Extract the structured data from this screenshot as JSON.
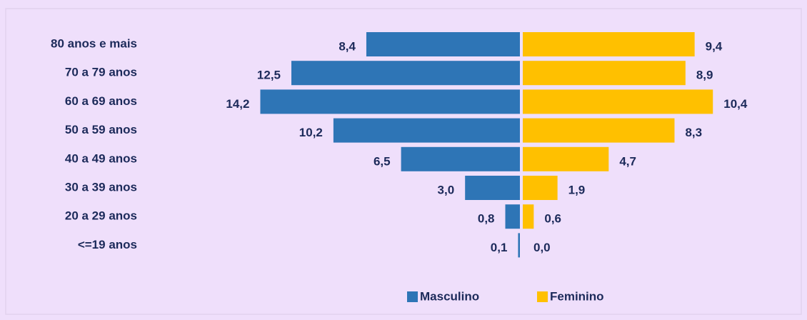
{
  "chart_data": {
    "type": "pyramid",
    "categories": [
      "80 anos e mais",
      "70 a 79 anos",
      "60 a 69 anos",
      "50 a 59 anos",
      "40 a 49 anos",
      "30 a 39 anos",
      "20 a 29 anos",
      "<=19 anos"
    ],
    "series": [
      {
        "name": "Masculino",
        "color": "#2e75b6",
        "values": [
          8.4,
          12.5,
          14.2,
          10.2,
          6.5,
          3.0,
          0.8,
          0.1
        ],
        "value_labels": [
          "8,4",
          "12,5",
          "14,2",
          "10,2",
          "6,5",
          "3,0",
          "0,8",
          "0,1"
        ]
      },
      {
        "name": "Feminino",
        "color": "#ffc000",
        "values": [
          9.4,
          8.9,
          10.4,
          8.3,
          4.7,
          1.9,
          0.6,
          0.0
        ],
        "value_labels": [
          "9,4",
          "8,9",
          "10,4",
          "8,3",
          "4,7",
          "1,9",
          "0,6",
          "0,0"
        ]
      }
    ],
    "legend": "bottom"
  }
}
